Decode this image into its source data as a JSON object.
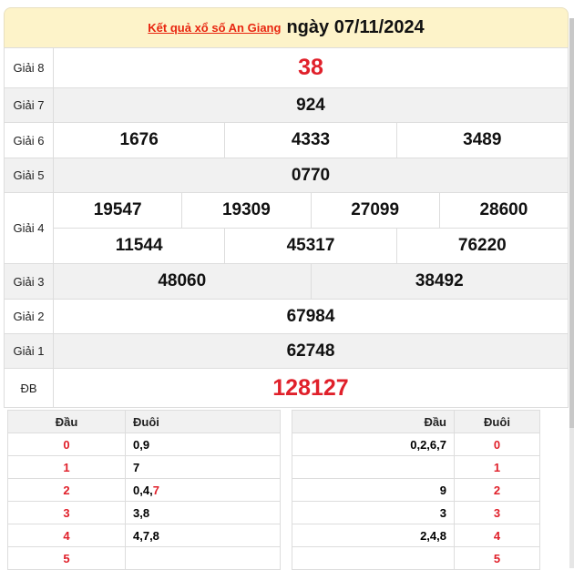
{
  "header": {
    "link_text": "Kết quả xổ số An Giang",
    "date_text": "ngày 07/11/2024"
  },
  "prizes": [
    {
      "label": "Giải 8",
      "numbers": [
        "38"
      ],
      "highlight": true
    },
    {
      "label": "Giải 7",
      "numbers": [
        "924"
      ]
    },
    {
      "label": "Giải 6",
      "numbers": [
        "1676",
        "4333",
        "3489"
      ]
    },
    {
      "label": "Giải 5",
      "numbers": [
        "0770"
      ]
    },
    {
      "label": "Giải 4",
      "numbers": [
        "19547",
        "19309",
        "27099",
        "28600",
        "11544",
        "45317",
        "76220"
      ]
    },
    {
      "label": "Giải 3",
      "numbers": [
        "48060",
        "38492"
      ]
    },
    {
      "label": "Giải 2",
      "numbers": [
        "67984"
      ]
    },
    {
      "label": "Giải 1",
      "numbers": [
        "62748"
      ]
    },
    {
      "label": "ĐB",
      "numbers": [
        "128127"
      ],
      "highlight": true
    }
  ],
  "colors": {
    "accent_red": "#e0202a",
    "header_bg": "#fdf3c9",
    "link": "#e8250f"
  },
  "loto_left": {
    "headers": [
      "Đầu",
      "Đuôi"
    ],
    "rows": [
      {
        "dau": "0",
        "duoi": "0,9"
      },
      {
        "dau": "1",
        "duoi": "7"
      },
      {
        "dau": "2",
        "duoi": "0,4,",
        "duoi_red": "7"
      },
      {
        "dau": "3",
        "duoi": "3,8"
      },
      {
        "dau": "4",
        "duoi": "4,7,8"
      },
      {
        "dau": "5",
        "duoi": ""
      }
    ]
  },
  "loto_right": {
    "headers": [
      "Đầu",
      "Đuôi"
    ],
    "rows": [
      {
        "dau": "0,2,6,7",
        "duoi": "0"
      },
      {
        "dau": "",
        "duoi": "1"
      },
      {
        "dau": "9",
        "duoi": "2"
      },
      {
        "dau": "3",
        "duoi": "3"
      },
      {
        "dau": "2,4,8",
        "duoi": "4"
      },
      {
        "dau": "",
        "duoi": "5"
      }
    ]
  }
}
